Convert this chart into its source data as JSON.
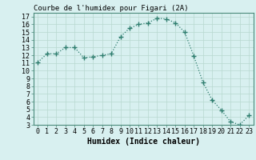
{
  "x": [
    0,
    1,
    2,
    3,
    4,
    5,
    6,
    7,
    8,
    9,
    10,
    11,
    12,
    13,
    14,
    15,
    16,
    17,
    18,
    19,
    20,
    21,
    22,
    23
  ],
  "y": [
    11.1,
    12.2,
    12.2,
    13.0,
    13.0,
    11.7,
    11.8,
    12.0,
    12.2,
    14.4,
    15.5,
    16.0,
    16.2,
    16.8,
    16.7,
    16.2,
    15.0,
    11.9,
    8.5,
    6.2,
    4.9,
    3.4,
    3.0,
    4.2
  ],
  "line_color": "#2e7d6e",
  "marker": "+",
  "marker_size": 4,
  "marker_linewidth": 1.0,
  "line_width": 0.9,
  "bg_color": "#d8f0f0",
  "grid_color": "#b8d8d0",
  "title": "Courbe de l'humidex pour Figari (2A)",
  "xlabel": "Humidex (Indice chaleur)",
  "xlim": [
    -0.5,
    23.5
  ],
  "ylim": [
    3,
    17.5
  ],
  "yticks": [
    3,
    4,
    5,
    6,
    7,
    8,
    9,
    10,
    11,
    12,
    13,
    14,
    15,
    16,
    17
  ],
  "xticks": [
    0,
    1,
    2,
    3,
    4,
    5,
    6,
    7,
    8,
    9,
    10,
    11,
    12,
    13,
    14,
    15,
    16,
    17,
    18,
    19,
    20,
    21,
    22,
    23
  ],
  "xlabel_fontsize": 7,
  "tick_fontsize": 6,
  "title_fontsize": 6.5,
  "spine_color": "#4a8a7a"
}
